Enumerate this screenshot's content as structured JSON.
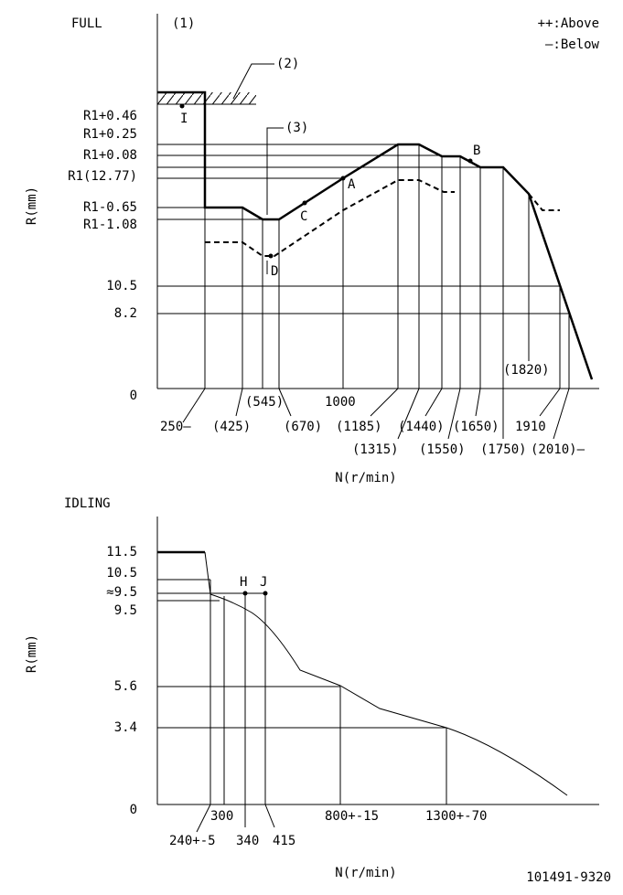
{
  "full": {
    "title": "FULL",
    "marker": "(1)",
    "legend": [
      "++:Above",
      "—:Below"
    ],
    "callout_2": "(2)",
    "callout_3": "(3)",
    "y_axis_label": "R(mm)",
    "x_axis_label": "N(r/min)",
    "y_labels": [
      "R1+0.46",
      "R1+0.25",
      "R1+0.08",
      "R1(12.77)",
      "R1-0.65",
      "R1-1.08",
      "10.5",
      "8.2",
      "0"
    ],
    "x_labels": [
      "250—",
      "(425)",
      "(545)",
      "(670)",
      "1000",
      "(1185)",
      "(1315)",
      "(1440)",
      "(1550)",
      "(1650)",
      "(1750)",
      "(1820)",
      "1910",
      "(2010)—"
    ],
    "points": [
      "I",
      "A",
      "B",
      "C",
      "D"
    ]
  },
  "idling": {
    "title": "IDLING",
    "y_axis_label": "R(mm)",
    "x_axis_label": "N(r/min)",
    "y_labels": [
      "11.5",
      "10.5",
      "≈9.5",
      "9.5",
      "5.6",
      "3.4",
      "0"
    ],
    "x_labels": [
      "240+-5",
      "300",
      "340",
      "415",
      "800+-15",
      "1300+-70"
    ],
    "points": [
      "H",
      "J"
    ]
  },
  "code": "101491-9320"
}
